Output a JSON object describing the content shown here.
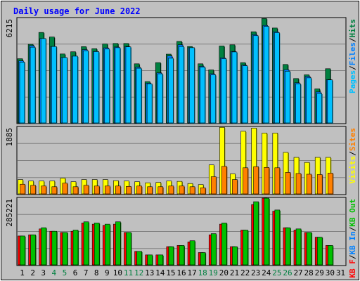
{
  "chart_data": {
    "type": "bar",
    "title": "Daily usage for June 2022",
    "categories": [
      "1",
      "2",
      "3",
      "4",
      "5",
      "6",
      "7",
      "8",
      "9",
      "10",
      "11",
      "12",
      "13",
      "14",
      "15",
      "16",
      "17",
      "18",
      "19",
      "20",
      "21",
      "22",
      "23",
      "24",
      "25",
      "26",
      "27",
      "28",
      "29",
      "30",
      "31"
    ],
    "weekend_days": [
      "4",
      "5",
      "11",
      "12",
      "18",
      "19",
      "25",
      "26"
    ],
    "colors": {
      "background": "#c0c0c0",
      "title": "#0000ff",
      "pages": "#00c0ff",
      "files": "#0080ff",
      "hits": "#008040",
      "visits": "#ffff00",
      "sites": "#ff8000",
      "kb_in": "#0080ff",
      "kb_out": "#00c000",
      "kb_f": "#ff0000",
      "weekend_label": "#008040"
    },
    "panels": [
      {
        "max_label": "6215",
        "ylim": [
          0,
          6215
        ],
        "legend": [
          {
            "text": "Pages",
            "color": "#00c0ff"
          },
          {
            "text": "/",
            "color": "#000000"
          },
          {
            "text": "Files",
            "color": "#0080ff"
          },
          {
            "text": "/",
            "color": "#000000"
          },
          {
            "text": "Hits",
            "color": "#008040"
          }
        ],
        "series": [
          {
            "name": "Hits",
            "color": "#008040",
            "values": [
              3830,
              4680,
              5380,
              5110,
              4110,
              4240,
              4540,
              4420,
              4700,
              4730,
              4730,
              3530,
              2480,
              3600,
              4100,
              4850,
              4550,
              3530,
              3170,
              4580,
              4650,
              3600,
              5420,
              6200,
              5640,
              3490,
              2660,
              2880,
              2050,
              3240,
              null
            ]
          },
          {
            "name": "Files",
            "color": "#0080ff",
            "values": [
              3700,
              4600,
              5020,
              4550,
              3900,
              3980,
              4370,
              4260,
              4470,
              4520,
              4550,
              3330,
              2390,
              3000,
              3990,
              4650,
              4480,
              3380,
              2940,
              3880,
              4260,
              3450,
              5250,
              5790,
              5420,
              3180,
              2410,
              2780,
              1870,
              2600,
              null
            ]
          },
          {
            "name": "Pages",
            "color": "#00c0ff",
            "values": [
              3630,
              4510,
              5020,
              4550,
              3900,
              3980,
              4300,
              4250,
              4400,
              4480,
              4530,
              3270,
              2350,
              2940,
              3860,
              4550,
              4480,
              3340,
              2880,
              3830,
              4230,
              3410,
              5190,
              5740,
              5370,
              3090,
              2350,
              2700,
              1780,
              2580,
              null
            ]
          }
        ]
      },
      {
        "max_label": "1885",
        "ylim": [
          0,
          1885
        ],
        "legend": [
          {
            "text": "Visits",
            "color": "#ffff00"
          },
          {
            "text": "/",
            "color": "#000000"
          },
          {
            "text": "Sites",
            "color": "#ff8000"
          }
        ],
        "series": [
          {
            "name": "Visits",
            "color": "#ffff00",
            "values": [
              420,
              380,
              380,
              380,
              460,
              360,
              420,
              420,
              420,
              390,
              380,
              360,
              330,
              340,
              380,
              370,
              310,
              280,
              830,
              1880,
              580,
              1770,
              1860,
              1720,
              1720,
              1180,
              1040,
              900,
              1040,
              1040,
              null
            ]
          },
          {
            "name": "Sites",
            "color": "#ff8000",
            "values": [
              290,
              260,
              240,
              220,
              320,
              220,
              260,
              240,
              240,
              240,
              230,
              240,
              220,
              220,
              240,
              240,
              220,
              190,
              500,
              790,
              420,
              750,
              780,
              760,
              750,
              620,
              590,
              570,
              560,
              600,
              null
            ]
          }
        ]
      },
      {
        "max_label": "285221",
        "ylim": [
          0,
          285221
        ],
        "legend": [
          {
            "text": "KB F",
            "color": "#ff0000"
          },
          {
            "text": "/",
            "color": "#000000"
          },
          {
            "text": "KB In",
            "color": "#0080ff"
          },
          {
            "text": "/",
            "color": "#000000"
          },
          {
            "text": "KB Out",
            "color": "#00c000"
          }
        ],
        "series": [
          {
            "name": "KB F",
            "color": "#ff0000",
            "values": [
              125000,
              130000,
              155000,
              145000,
              140000,
              145000,
              180000,
              175000,
              170000,
              175000,
              140000,
              60000,
              45000,
              45000,
              80000,
              85000,
              100000,
              55000,
              130000,
              175000,
              80000,
              150000,
              258000,
              285000,
              230000,
              160000,
              150000,
              140000,
              120000,
              85000,
              null
            ]
          },
          {
            "name": "KB Out",
            "color": "#00c000",
            "values": [
              125000,
              130000,
              160000,
              145000,
              140000,
              150000,
              185000,
              180000,
              175000,
              185000,
              140000,
              60000,
              45000,
              45000,
              80000,
              85000,
              105000,
              55000,
              135000,
              180000,
              80000,
              150000,
              270000,
              285000,
              235000,
              160000,
              155000,
              140000,
              120000,
              85000,
              null
            ]
          }
        ]
      }
    ]
  }
}
